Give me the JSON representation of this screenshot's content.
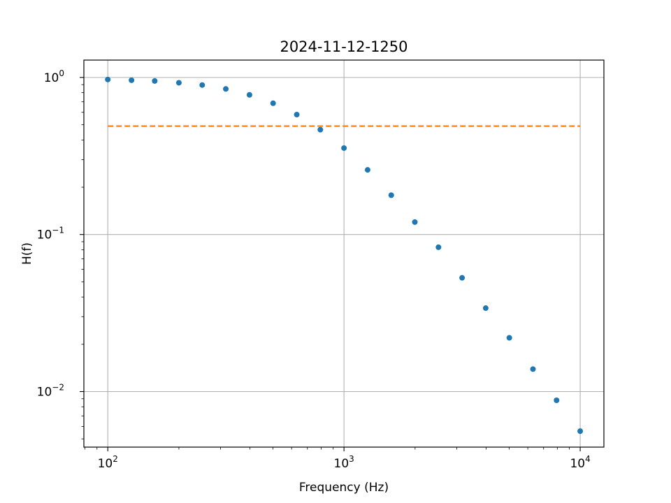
{
  "chart_data": {
    "type": "scatter",
    "title": "2024-11-12-1250",
    "xlabel": "Frequency (Hz)",
    "ylabel": "H(f)",
    "xscale": "log",
    "yscale": "log",
    "xlim": [
      79.2,
      12600
    ],
    "ylim": [
      0.00443,
      1.29
    ],
    "grid": true,
    "x_ticks": [
      {
        "value": 100,
        "base": "10",
        "exp": "2"
      },
      {
        "value": 1000,
        "base": "10",
        "exp": "3"
      },
      {
        "value": 10000,
        "base": "10",
        "exp": "4"
      }
    ],
    "y_ticks": [
      {
        "value": 1,
        "base": "10",
        "exp": "0"
      },
      {
        "value": 0.1,
        "base": "10",
        "exp": "−1"
      },
      {
        "value": 0.01,
        "base": "10",
        "exp": "−2"
      }
    ],
    "series": [
      {
        "kind": "scatter",
        "color": "#1f77b4",
        "x": [
          100,
          126,
          158,
          200,
          251,
          316,
          398,
          501,
          631,
          794,
          1000,
          1259,
          1585,
          1995,
          2512,
          3162,
          3981,
          5012,
          6310,
          7943,
          10000
        ],
        "y": [
          0.97,
          0.96,
          0.95,
          0.925,
          0.895,
          0.845,
          0.775,
          0.685,
          0.58,
          0.465,
          0.355,
          0.258,
          0.178,
          0.12,
          0.083,
          0.053,
          0.034,
          0.022,
          0.0139,
          0.0088,
          0.0056
        ]
      },
      {
        "kind": "line",
        "style": "dashed",
        "color": "#ff7f0e",
        "x": [
          100,
          10000
        ],
        "y": [
          0.49,
          0.49
        ]
      }
    ]
  }
}
